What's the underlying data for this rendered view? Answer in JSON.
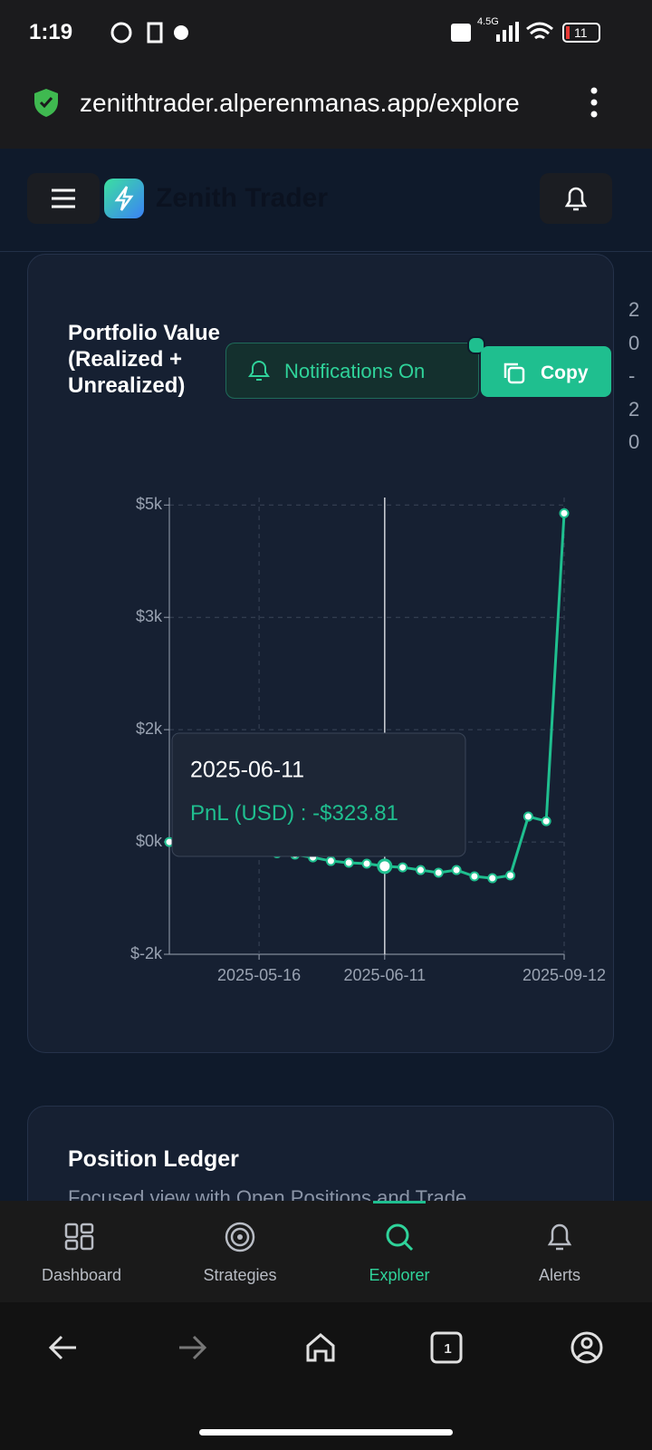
{
  "status_bar": {
    "time": "1:19",
    "network": "4.5G",
    "battery": "11"
  },
  "browser": {
    "url": "zenithtrader.alperenmanas.app/explore",
    "tab_count": "1"
  },
  "header": {
    "app_title": "Zenith Trader"
  },
  "card": {
    "title": "Portfolio Value (Realized + Unrealized)",
    "notifications_button": "Notifications On",
    "copy_button": "Copy"
  },
  "side_peek": [
    "2",
    "0",
    "-",
    "2",
    "0"
  ],
  "chart_data": {
    "type": "line",
    "categories": [
      null,
      null,
      null,
      null,
      null,
      "2025-05-16",
      null,
      null,
      null,
      null,
      null,
      null,
      "2025-06-11",
      null,
      null,
      null,
      null,
      null,
      null,
      null,
      null,
      null,
      "2025-09-12"
    ],
    "series": [
      {
        "name": "PnL (USD)",
        "color": "#1fbf8f",
        "values": [
          0,
          -20,
          -40,
          -60,
          -90,
          -120,
          -150,
          -169,
          -206,
          -254,
          -278,
          -290,
          -323.81,
          -339,
          -375,
          -411,
          -375,
          -459,
          -484,
          -447,
          339,
          278,
          4390
        ],
        "value_labels": [
          null,
          null,
          null,
          null,
          null,
          null,
          null,
          null,
          null,
          null,
          null,
          null,
          "-$323.81",
          null,
          null,
          null,
          null,
          null,
          null,
          null,
          null,
          null,
          null
        ]
      }
    ],
    "ylim": [
      -1500,
      4600
    ],
    "yticks": [
      {
        "value": -1500,
        "label": "$-2k"
      },
      {
        "value": 0,
        "label": "$0k"
      },
      {
        "value": 1500,
        "label": "$2k"
      },
      {
        "value": 3000,
        "label": "$3k"
      },
      {
        "value": 4500,
        "label": "$5k"
      }
    ],
    "grid": true,
    "tooltip": {
      "index": 12,
      "separator": " : "
    }
  },
  "ledger": {
    "title": "Position Ledger",
    "subtitle": "Focused view with Open Positions and Trade"
  },
  "bottom_nav": [
    "Dashboard",
    "Strategies",
    "Explorer",
    "Alerts"
  ]
}
